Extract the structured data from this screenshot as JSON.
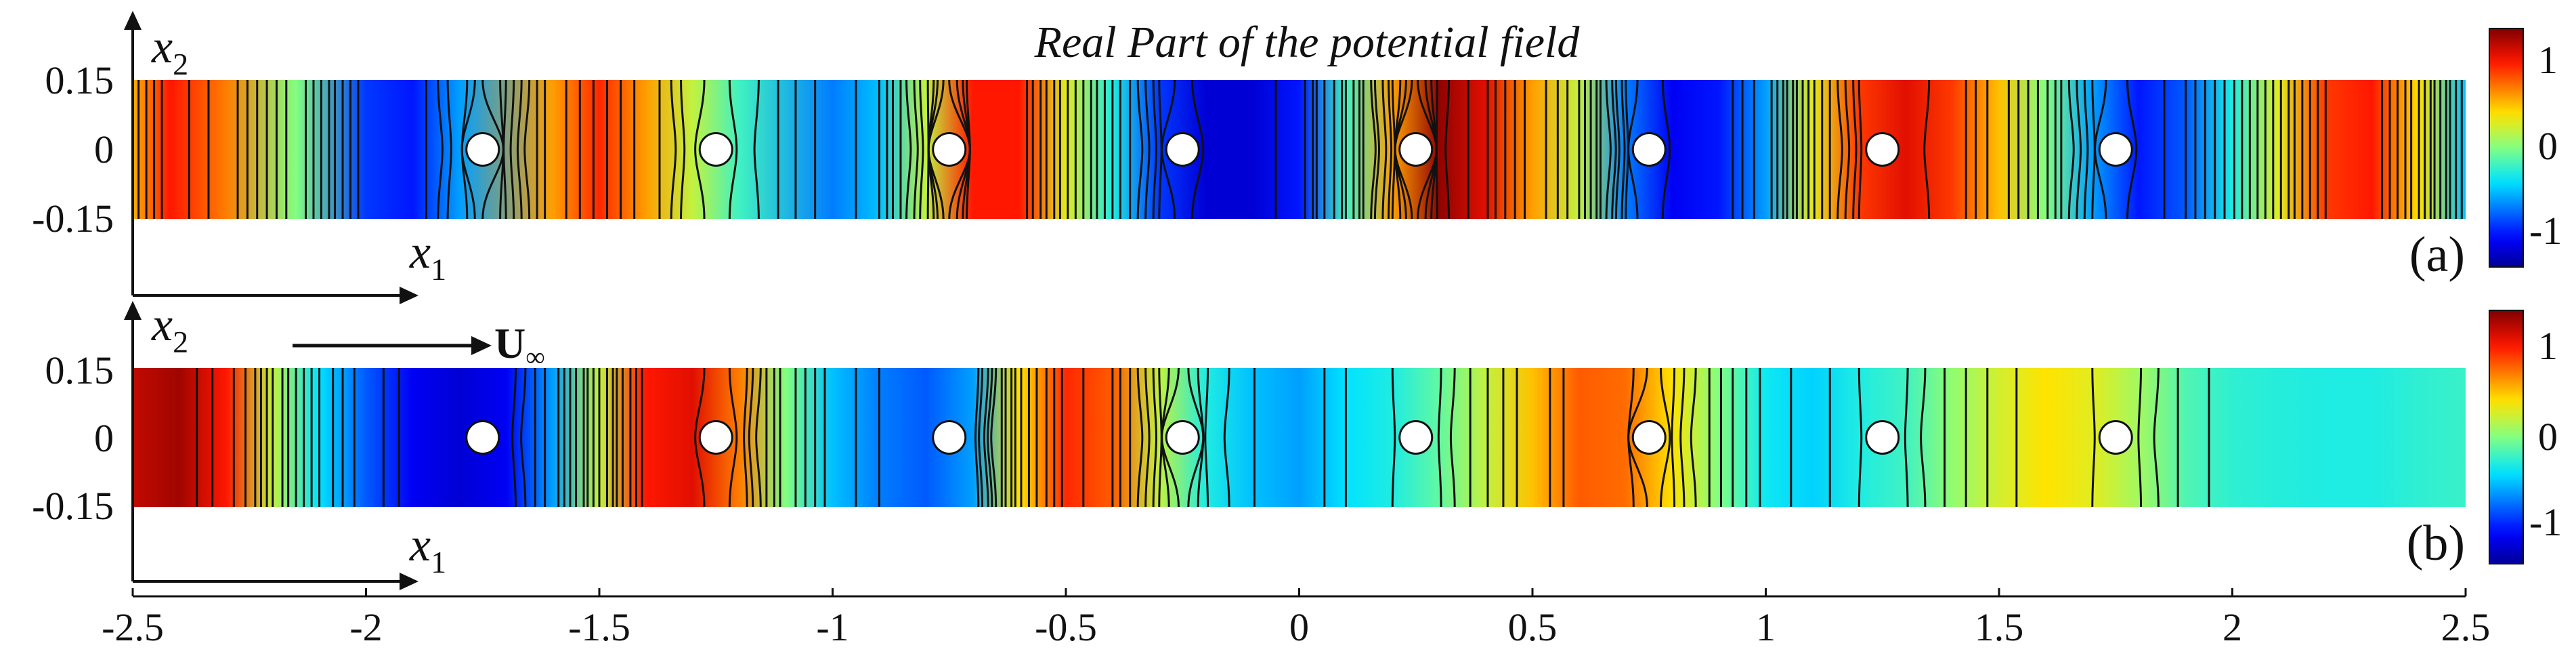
{
  "chart_data": {
    "type": "heatmap",
    "title": "Real Part of the potential field",
    "xlim": [
      -2.5,
      2.5
    ],
    "x_ticks": [
      -2.5,
      -2,
      -1.5,
      -1,
      -0.5,
      0,
      0.5,
      1,
      1.5,
      2,
      2.5
    ],
    "x_tick_labels": [
      "-2.5",
      "-2",
      "-1.5",
      "-1",
      "-0.5",
      "0",
      "0.5",
      "1",
      "1.5",
      "2",
      "2.5"
    ],
    "ylim": [
      -0.15,
      0.15
    ],
    "y_ticks": [
      0.15,
      0,
      -0.15
    ],
    "y_tick_labels": [
      "0.15",
      "0",
      "-0.15"
    ],
    "xlabel": "x",
    "xlabel_sub": "1",
    "ylabel": "x",
    "ylabel_sub": "2",
    "obstacles_x": [
      -1.75,
      -1.25,
      -0.75,
      -0.25,
      0.25,
      0.75,
      1.25,
      1.75
    ],
    "obstacle_y": 0,
    "obstacle_radius": 0.04,
    "flow_annotation": {
      "label": "U",
      "subscript": "∞"
    },
    "colorbar": {
      "range": [
        -1.4,
        1.4
      ],
      "ticks": [
        1,
        0,
        -1
      ],
      "tick_labels": [
        "1",
        "0",
        "-1"
      ]
    },
    "panels": [
      {
        "label": "(a)",
        "profile_x": [
          -2.5,
          -2.42,
          -2.3,
          -2.15,
          -2.0,
          -1.9,
          -1.8,
          -1.6,
          -1.5,
          -1.4,
          -1.3,
          -1.2,
          -1.0,
          -0.9,
          -0.8,
          -0.7,
          -0.6,
          -0.5,
          -0.4,
          -0.3,
          -0.2,
          -0.1,
          0.0,
          0.1,
          0.2,
          0.3,
          0.4,
          0.5,
          0.6,
          0.7,
          0.8,
          0.9,
          1.0,
          1.1,
          1.2,
          1.3,
          1.4,
          1.5,
          1.6,
          1.7,
          1.8,
          1.9,
          2.0,
          2.1,
          2.2,
          2.3,
          2.4,
          2.5
        ],
        "profile_value": [
          0.55,
          1.0,
          0.7,
          0.0,
          -0.9,
          -1.0,
          -0.6,
          0.6,
          0.95,
          0.6,
          0.2,
          -0.2,
          -0.7,
          -0.5,
          0.2,
          1.0,
          1.0,
          0.3,
          -0.3,
          -0.9,
          -1.2,
          -1.2,
          -1.0,
          -0.2,
          0.6,
          1.35,
          1.1,
          0.6,
          0.2,
          -0.7,
          -1.1,
          -1.0,
          -0.6,
          0.3,
          0.9,
          1.1,
          0.9,
          0.5,
          0.0,
          -0.6,
          -1.0,
          -0.8,
          -0.3,
          0.3,
          0.9,
          1.0,
          0.4,
          -0.5
        ]
      },
      {
        "label": "(b)",
        "profile_x": [
          -2.5,
          -2.4,
          -2.3,
          -2.2,
          -2.1,
          -2.0,
          -1.9,
          -1.8,
          -1.7,
          -1.6,
          -1.5,
          -1.4,
          -1.3,
          -1.2,
          -1.1,
          -1.0,
          -0.9,
          -0.8,
          -0.7,
          -0.6,
          -0.5,
          -0.4,
          -0.3,
          -0.2,
          -0.1,
          0.0,
          0.1,
          0.2,
          0.3,
          0.4,
          0.5,
          0.6,
          0.7,
          0.8,
          0.9,
          1.0,
          1.1,
          1.2,
          1.3,
          1.4,
          1.5,
          1.6,
          1.7,
          1.8,
          1.9,
          2.0,
          2.1,
          2.2,
          2.3,
          2.4,
          2.5
        ],
        "profile_value": [
          1.2,
          1.3,
          1.0,
          0.2,
          -0.4,
          -0.8,
          -1.1,
          -1.2,
          -1.1,
          -0.6,
          0.2,
          1.0,
          1.1,
          0.7,
          0.0,
          -0.5,
          -0.7,
          -0.8,
          -0.6,
          0.4,
          0.95,
          0.8,
          0.2,
          -0.3,
          -0.5,
          -0.6,
          -0.4,
          -0.3,
          -0.1,
          0.2,
          0.5,
          0.8,
          0.75,
          0.4,
          0.0,
          -0.35,
          -0.45,
          -0.3,
          -0.2,
          0.05,
          0.25,
          0.4,
          0.3,
          0.1,
          -0.15,
          -0.25,
          -0.28,
          -0.3,
          -0.3,
          -0.25,
          -0.22
        ]
      }
    ]
  }
}
